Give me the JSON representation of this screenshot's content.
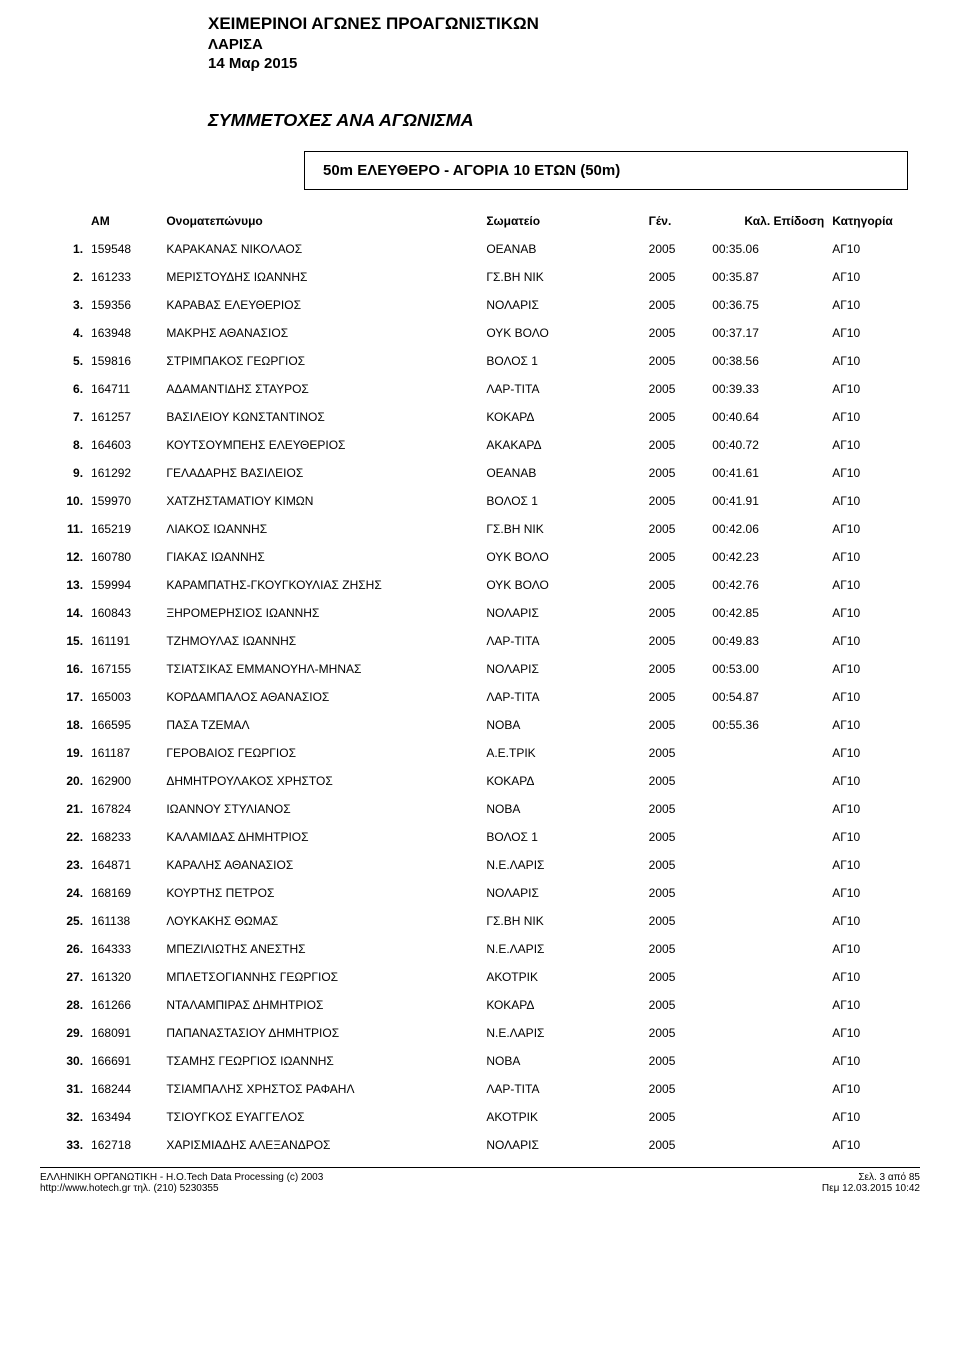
{
  "header": {
    "competition_title": "ΧΕΙΜΕΡΙΝΟΙ ΑΓΩΝΕΣ ΠΡΟΑΓΩΝΙΣΤΙΚΩΝ",
    "location": "ΛΑΡΙΣΑ",
    "date": "14 Μαρ 2015"
  },
  "section_title": "ΣΥΜΜΕΤΟΧΕΣ ΑΝΑ ΑΓΩΝΙΣΜΑ",
  "event_box": "50m ΕΛΕΥΘΕΡΟ - ΑΓΟΡΙΑ 10 ΕΤΩΝ   (50m)",
  "columns": {
    "am": "ΑΜ",
    "name": "Ονοματεπώνυμο",
    "club": "Σωματείο",
    "year": "Γέν.",
    "time": "Καλ. Επίδοση",
    "cat": "Κατηγορία"
  },
  "rows": [
    {
      "rank": "1.",
      "am": "159548",
      "name": "ΚΑΡΑΚΑΝΑΣ ΝΙΚΟΛΑΟΣ",
      "club": "ΟΕΑΝΑΒ",
      "year": "2005",
      "time": "00:35.06",
      "cat": "ΑΓ10"
    },
    {
      "rank": "2.",
      "am": "161233",
      "name": "ΜΕΡΙΣΤΟΥΔΗΣ ΙΩΑΝΝΗΣ",
      "club": "ΓΣ.ΒΗ ΝΙΚ",
      "year": "2005",
      "time": "00:35.87",
      "cat": "ΑΓ10"
    },
    {
      "rank": "3.",
      "am": "159356",
      "name": "ΚΑΡΑΒΑΣ ΕΛΕΥΘΕΡΙΟΣ",
      "club": "ΝΟΛΑΡΙΣ",
      "year": "2005",
      "time": "00:36.75",
      "cat": "ΑΓ10"
    },
    {
      "rank": "4.",
      "am": "163948",
      "name": "ΜΑΚΡΗΣ ΑΘΑΝΑΣΙΟΣ",
      "club": "ΟΥΚ ΒΟΛΟ",
      "year": "2005",
      "time": "00:37.17",
      "cat": "ΑΓ10"
    },
    {
      "rank": "5.",
      "am": "159816",
      "name": "ΣΤΡΙΜΠΑΚΟΣ ΓΕΩΡΓΙΟΣ",
      "club": "ΒΟΛΟΣ 1",
      "year": "2005",
      "time": "00:38.56",
      "cat": "ΑΓ10"
    },
    {
      "rank": "6.",
      "am": "164711",
      "name": "ΑΔΑΜΑΝΤΙΔΗΣ ΣΤΑΥΡΟΣ",
      "club": "ΛΑΡ-ΤΙΤΑ",
      "year": "2005",
      "time": "00:39.33",
      "cat": "ΑΓ10"
    },
    {
      "rank": "7.",
      "am": "161257",
      "name": "ΒΑΣΙΛΕΙΟΥ ΚΩΝΣΤΑΝΤΙΝΟΣ",
      "club": "ΚΟΚΑΡΔ",
      "year": "2005",
      "time": "00:40.64",
      "cat": "ΑΓ10"
    },
    {
      "rank": "8.",
      "am": "164603",
      "name": "ΚΟΥΤΣΟΥΜΠΕΗΣ ΕΛΕΥΘΕΡΙΟΣ",
      "club": "ΑΚΑΚΑΡΔ",
      "year": "2005",
      "time": "00:40.72",
      "cat": "ΑΓ10"
    },
    {
      "rank": "9.",
      "am": "161292",
      "name": "ΓΕΛΑΔΑΡΗΣ ΒΑΣΙΛΕΙΟΣ",
      "club": "ΟΕΑΝΑΒ",
      "year": "2005",
      "time": "00:41.61",
      "cat": "ΑΓ10"
    },
    {
      "rank": "10.",
      "am": "159970",
      "name": "ΧΑΤΖΗΣΤΑΜΑΤΙΟΥ ΚΙΜΩΝ",
      "club": "ΒΟΛΟΣ 1",
      "year": "2005",
      "time": "00:41.91",
      "cat": "ΑΓ10"
    },
    {
      "rank": "11.",
      "am": "165219",
      "name": "ΛΙΑΚΟΣ ΙΩΑΝΝΗΣ",
      "club": "ΓΣ.ΒΗ ΝΙΚ",
      "year": "2005",
      "time": "00:42.06",
      "cat": "ΑΓ10"
    },
    {
      "rank": "12.",
      "am": "160780",
      "name": "ΓΙΑΚΑΣ ΙΩΑΝΝΗΣ",
      "club": "ΟΥΚ ΒΟΛΟ",
      "year": "2005",
      "time": "00:42.23",
      "cat": "ΑΓ10"
    },
    {
      "rank": "13.",
      "am": "159994",
      "name": "ΚΑΡΑΜΠΑΤΗΣ-ΓΚΟΥΓΚΟΥΛΙΑΣ ΖΗΣΗΣ",
      "club": "ΟΥΚ ΒΟΛΟ",
      "year": "2005",
      "time": "00:42.76",
      "cat": "ΑΓ10"
    },
    {
      "rank": "14.",
      "am": "160843",
      "name": "ΞΗΡΟΜΕΡΗΣΙΟΣ ΙΩΑΝΝΗΣ",
      "club": "ΝΟΛΑΡΙΣ",
      "year": "2005",
      "time": "00:42.85",
      "cat": "ΑΓ10"
    },
    {
      "rank": "15.",
      "am": "161191",
      "name": "ΤΖΗΜΟΥΛΑΣ ΙΩΑΝΝΗΣ",
      "club": "ΛΑΡ-ΤΙΤΑ",
      "year": "2005",
      "time": "00:49.83",
      "cat": "ΑΓ10"
    },
    {
      "rank": "16.",
      "am": "167155",
      "name": "ΤΣΙΑΤΣΙΚΑΣ ΕΜΜΑΝΟΥΗΛ-ΜΗΝΑΣ",
      "club": "ΝΟΛΑΡΙΣ",
      "year": "2005",
      "time": "00:53.00",
      "cat": "ΑΓ10"
    },
    {
      "rank": "17.",
      "am": "165003",
      "name": "ΚΟΡΔΑΜΠΑΛΟΣ ΑΘΑΝΑΣΙΟΣ",
      "club": "ΛΑΡ-ΤΙΤΑ",
      "year": "2005",
      "time": "00:54.87",
      "cat": "ΑΓ10"
    },
    {
      "rank": "18.",
      "am": "166595",
      "name": "ΠΑΣΑ ΤΖΕΜΑΛ",
      "club": "ΝΟΒΑ",
      "year": "2005",
      "time": "00:55.36",
      "cat": "ΑΓ10"
    },
    {
      "rank": "19.",
      "am": "161187",
      "name": "ΓΕΡΟΒΑΙΟΣ ΓΕΩΡΓΙΟΣ",
      "club": "Α.Ε.ΤΡΙΚ",
      "year": "2005",
      "time": "",
      "cat": "ΑΓ10"
    },
    {
      "rank": "20.",
      "am": "162900",
      "name": "ΔΗΜΗΤΡΟΥΛΑΚΟΣ ΧΡΗΣΤΟΣ",
      "club": "ΚΟΚΑΡΔ",
      "year": "2005",
      "time": "",
      "cat": "ΑΓ10"
    },
    {
      "rank": "21.",
      "am": "167824",
      "name": "ΙΩΑΝΝΟΥ ΣΤΥΛΙΑΝΟΣ",
      "club": "ΝΟΒΑ",
      "year": "2005",
      "time": "",
      "cat": "ΑΓ10"
    },
    {
      "rank": "22.",
      "am": "168233",
      "name": "ΚΑΛΑΜΙΔΑΣ ΔΗΜΗΤΡΙΟΣ",
      "club": "ΒΟΛΟΣ 1",
      "year": "2005",
      "time": "",
      "cat": "ΑΓ10"
    },
    {
      "rank": "23.",
      "am": "164871",
      "name": "ΚΑΡΑΛΗΣ ΑΘΑΝΑΣΙΟΣ",
      "club": "Ν.Ε.ΛΑΡΙΣ",
      "year": "2005",
      "time": "",
      "cat": "ΑΓ10"
    },
    {
      "rank": "24.",
      "am": "168169",
      "name": "ΚΟΥΡΤΗΣ ΠΕΤΡΟΣ",
      "club": "ΝΟΛΑΡΙΣ",
      "year": "2005",
      "time": "",
      "cat": "ΑΓ10"
    },
    {
      "rank": "25.",
      "am": "161138",
      "name": "ΛΟΥΚΑΚΗΣ ΘΩΜΑΣ",
      "club": "ΓΣ.ΒΗ ΝΙΚ",
      "year": "2005",
      "time": "",
      "cat": "ΑΓ10"
    },
    {
      "rank": "26.",
      "am": "164333",
      "name": "ΜΠΕΖΙΛΙΩΤΗΣ ΑΝΕΣΤΗΣ",
      "club": "Ν.Ε.ΛΑΡΙΣ",
      "year": "2005",
      "time": "",
      "cat": "ΑΓ10"
    },
    {
      "rank": "27.",
      "am": "161320",
      "name": "ΜΠΛΕΤΣΟΓΙΑΝΝΗΣ ΓΕΩΡΓΙΟΣ",
      "club": "ΑΚΟΤΡΙΚ",
      "year": "2005",
      "time": "",
      "cat": "ΑΓ10"
    },
    {
      "rank": "28.",
      "am": "161266",
      "name": "ΝΤΑΛΑΜΠΙΡΑΣ ΔΗΜΗΤΡΙΟΣ",
      "club": "ΚΟΚΑΡΔ",
      "year": "2005",
      "time": "",
      "cat": "ΑΓ10"
    },
    {
      "rank": "29.",
      "am": "168091",
      "name": "ΠΑΠΑΝΑΣΤΑΣΙΟΥ ΔΗΜΗΤΡΙΟΣ",
      "club": "Ν.Ε.ΛΑΡΙΣ",
      "year": "2005",
      "time": "",
      "cat": "ΑΓ10"
    },
    {
      "rank": "30.",
      "am": "166691",
      "name": "ΤΣΑΜΗΣ ΓΕΩΡΓΙΟΣ ΙΩΑΝΝΗΣ",
      "club": "ΝΟΒΑ",
      "year": "2005",
      "time": "",
      "cat": "ΑΓ10"
    },
    {
      "rank": "31.",
      "am": "168244",
      "name": "ΤΣΙΑΜΠΑΛΗΣ ΧΡΗΣΤΟΣ ΡΑΦΑΗΛ",
      "club": "ΛΑΡ-ΤΙΤΑ",
      "year": "2005",
      "time": "",
      "cat": "ΑΓ10"
    },
    {
      "rank": "32.",
      "am": "163494",
      "name": "ΤΣΙΟΥΓΚΟΣ ΕΥΑΓΓΕΛΟΣ",
      "club": "ΑΚΟΤΡΙΚ",
      "year": "2005",
      "time": "",
      "cat": "ΑΓ10"
    },
    {
      "rank": "33.",
      "am": "162718",
      "name": "ΧΑΡΙΣΜΙΑΔΗΣ ΑΛΕΞΑΝΔΡΟΣ",
      "club": "ΝΟΛΑΡΙΣ",
      "year": "2005",
      "time": "",
      "cat": "ΑΓ10"
    }
  ],
  "footer": {
    "left_line1": "ΕΛΛΗΝΙΚΗ ΟΡΓΑΝΩΤΙΚΗ - H.O.Tech  Data Processing (c) 2003",
    "left_line2": "http://www.hotech.gr    τηλ. (210) 5230355",
    "right_line1": "Σελ. 3 από 85",
    "right_line2": "Πεμ 12.03.2015 10:42"
  }
}
